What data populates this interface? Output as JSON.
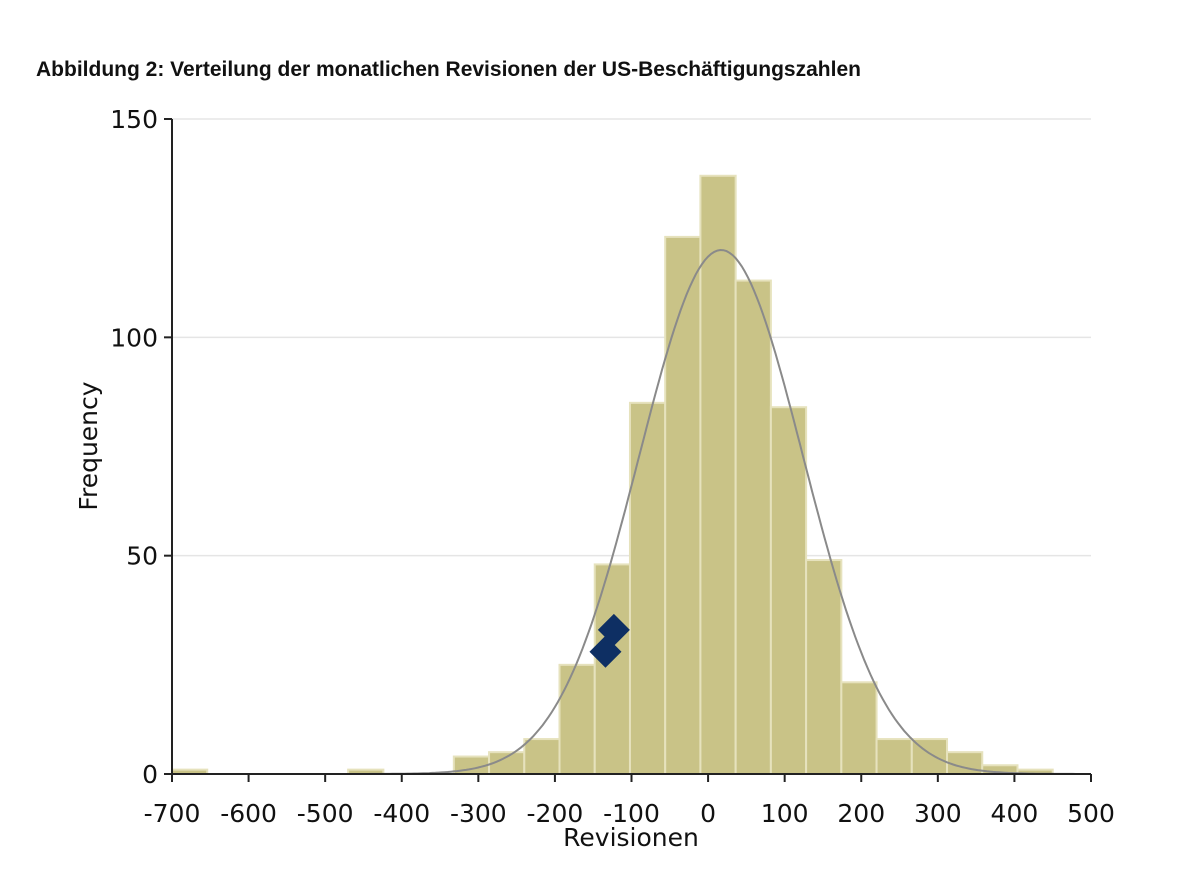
{
  "title": "Abbildung 2: Verteilung der monatlichen Revisionen der US-Beschäftigungszahlen",
  "colors": {
    "bar": "#c9c387",
    "bar_edge": "#e6e2bd",
    "curve": "#8a8a8a",
    "marker": "#0e2f63",
    "grid": "#e5e5e5"
  },
  "chart_data": {
    "type": "bar",
    "xlabel": "Revisionen",
    "ylabel": "Frequency",
    "xlim": [
      -700,
      500
    ],
    "ylim": [
      0,
      150
    ],
    "xticks": [
      "-700",
      "-600",
      "-500",
      "-400",
      "-300",
      "-200",
      "-100",
      "0",
      "100",
      "200",
      "300",
      "400",
      "500"
    ],
    "yticks": [
      "0",
      "50",
      "100",
      "150"
    ],
    "grid": true,
    "bin_width": 46,
    "bins": [
      {
        "x0": -700,
        "value": 1
      },
      {
        "x0": -470,
        "value": 1
      },
      {
        "x0": -332,
        "value": 4
      },
      {
        "x0": -286,
        "value": 5
      },
      {
        "x0": -240,
        "value": 8
      },
      {
        "x0": -194,
        "value": 25
      },
      {
        "x0": -148,
        "value": 48
      },
      {
        "x0": -102,
        "value": 85
      },
      {
        "x0": -56,
        "value": 123
      },
      {
        "x0": -10,
        "value": 137
      },
      {
        "x0": 36,
        "value": 113
      },
      {
        "x0": 82,
        "value": 84
      },
      {
        "x0": 128,
        "value": 49
      },
      {
        "x0": 174,
        "value": 21
      },
      {
        "x0": 220,
        "value": 8
      },
      {
        "x0": 266,
        "value": 8
      },
      {
        "x0": 312,
        "value": 5
      },
      {
        "x0": 358,
        "value": 2
      },
      {
        "x0": 404,
        "value": 1
      }
    ],
    "normal_curve": {
      "mean": 17,
      "sd": 107,
      "peak": 120
    },
    "markers": [
      {
        "x": -123,
        "y": 33
      },
      {
        "x": -134,
        "y": 28
      }
    ]
  }
}
